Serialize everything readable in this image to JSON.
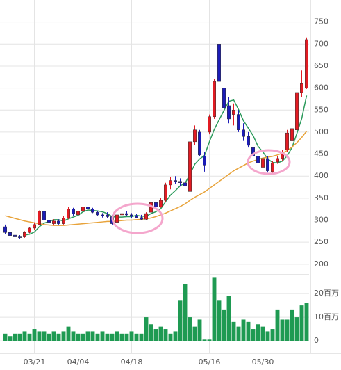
{
  "chart_data": {
    "type": "candlestick",
    "categories": [
      null,
      null,
      null,
      null,
      null,
      null,
      "03/21",
      null,
      null,
      null,
      null,
      null,
      null,
      null,
      null,
      "04/04",
      null,
      null,
      null,
      null,
      null,
      null,
      null,
      null,
      null,
      null,
      "04/18",
      null,
      null,
      null,
      null,
      null,
      null,
      null,
      null,
      null,
      null,
      null,
      null,
      null,
      null,
      null,
      "05/16",
      null,
      null,
      null,
      null,
      null,
      null,
      null,
      null,
      null,
      null,
      "05/30",
      null,
      null,
      null,
      null,
      null,
      null,
      null,
      null,
      null
    ],
    "open": [
      285,
      272,
      266,
      262,
      262,
      272,
      282,
      290,
      320,
      300,
      292,
      298,
      292,
      305,
      325,
      312,
      320,
      330,
      325,
      318,
      312,
      312,
      308,
      295,
      312,
      315,
      312,
      310,
      306,
      302,
      318,
      340,
      330,
      345,
      380,
      390,
      388,
      385,
      365,
      478,
      500,
      445,
      500,
      535,
      700,
      600,
      560,
      540,
      540,
      505,
      490,
      465,
      445,
      420,
      440,
      410,
      432,
      440,
      460,
      480,
      505,
      590,
      600
    ],
    "high": [
      290,
      275,
      270,
      266,
      275,
      285,
      295,
      322,
      338,
      305,
      302,
      302,
      310,
      330,
      328,
      322,
      335,
      335,
      328,
      320,
      316,
      318,
      312,
      316,
      318,
      320,
      316,
      314,
      312,
      318,
      345,
      345,
      350,
      385,
      398,
      400,
      395,
      395,
      480,
      515,
      505,
      455,
      540,
      620,
      725,
      610,
      580,
      565,
      550,
      520,
      500,
      470,
      455,
      445,
      445,
      435,
      445,
      460,
      505,
      520,
      600,
      640,
      715
    ],
    "low": [
      268,
      262,
      260,
      258,
      260,
      270,
      278,
      288,
      298,
      290,
      288,
      290,
      290,
      302,
      310,
      308,
      318,
      322,
      316,
      310,
      306,
      305,
      290,
      292,
      308,
      310,
      305,
      305,
      300,
      300,
      316,
      325,
      328,
      342,
      370,
      382,
      378,
      375,
      362,
      470,
      445,
      410,
      495,
      530,
      610,
      545,
      520,
      515,
      500,
      480,
      465,
      440,
      425,
      415,
      408,
      405,
      428,
      435,
      455,
      475,
      500,
      580,
      598
    ],
    "close": [
      272,
      265,
      262,
      261,
      272,
      282,
      290,
      320,
      300,
      295,
      298,
      292,
      305,
      325,
      315,
      320,
      330,
      325,
      318,
      312,
      310,
      308,
      292,
      312,
      315,
      312,
      310,
      306,
      302,
      315,
      340,
      330,
      345,
      380,
      390,
      388,
      385,
      378,
      478,
      505,
      448,
      425,
      535,
      615,
      615,
      555,
      530,
      550,
      505,
      490,
      470,
      445,
      430,
      440,
      412,
      430,
      440,
      450,
      498,
      508,
      590,
      610,
      710
    ],
    "up_color": "#e31b23",
    "down_color": "#1c1cb8",
    "series": [
      {
        "color": "#2b9a5b",
        "values": [
          null,
          null,
          null,
          null,
          266,
          268,
          273,
          285,
          293,
          297,
          301,
          301,
          298,
          303,
          307,
          311,
          319,
          323,
          322,
          321,
          319,
          315,
          308,
          307,
          307,
          308,
          308,
          311,
          309,
          309,
          315,
          319,
          326,
          342,
          357,
          367,
          378,
          384,
          404,
          427,
          439,
          447,
          478,
          506,
          528,
          549,
          570,
          573,
          551,
          526,
          509,
          492,
          468,
          455,
          439,
          431,
          430,
          434,
          446,
          465,
          497,
          531,
          583
        ]
      },
      {
        "color": "#e8a33a",
        "values": [
          310,
          307,
          304,
          301,
          298,
          296,
          294,
          292,
          290,
          289,
          288,
          288,
          288,
          289,
          290,
          291,
          292,
          293,
          294,
          295,
          296,
          297,
          297,
          298,
          299,
          300,
          300,
          301,
          302,
          303,
          305,
          308,
          312,
          316,
          321,
          326,
          331,
          337,
          345,
          352,
          358,
          364,
          372,
          380,
          388,
          396,
          404,
          412,
          418,
          424,
          430,
          434,
          438,
          441,
          443,
          445,
          448,
          452,
          458,
          466,
          476,
          488,
          502
        ]
      }
    ],
    "ylim": [
      180,
      800
    ],
    "yticks": [
      200,
      250,
      300,
      350,
      400,
      450,
      500,
      550,
      600,
      650,
      700,
      750
    ],
    "grid": true,
    "volume": {
      "color": "#1e9a52",
      "values": [
        3,
        2,
        3,
        3,
        4,
        3,
        5,
        4,
        4,
        3,
        4,
        3,
        4,
        6,
        4,
        3,
        3,
        4,
        4,
        3,
        4,
        3,
        3,
        4,
        3,
        3,
        4,
        3,
        3,
        10,
        7,
        5,
        6,
        5,
        3,
        4,
        17,
        24,
        10,
        6,
        9,
        0.5,
        0.5,
        27,
        17,
        13,
        19,
        8,
        6,
        9,
        8,
        5,
        7,
        6,
        4,
        5,
        13,
        9,
        9,
        13,
        10,
        15,
        16
      ],
      "ylim": [
        0,
        28
      ],
      "yticks": [
        0,
        {
          "value": 10,
          "label": "10百万"
        },
        {
          "value": 20,
          "label": "20百万"
        }
      ]
    }
  }
}
